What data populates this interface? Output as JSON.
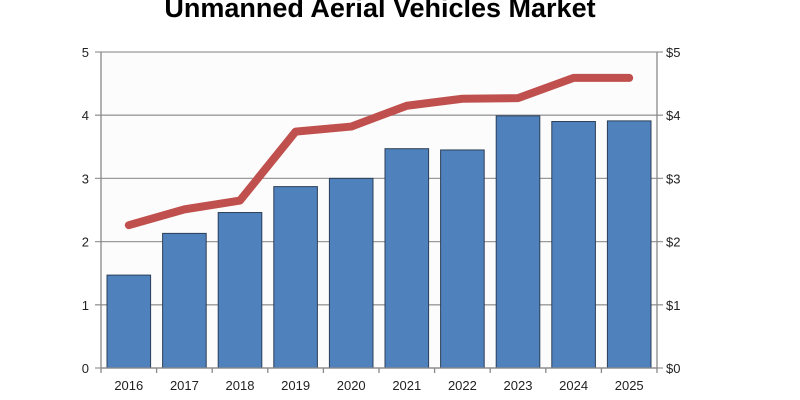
{
  "chart_data": {
    "type": "bar+line",
    "title": "Unmanned Aerial Vehicles Market",
    "categories": [
      "2016",
      "2017",
      "2018",
      "2019",
      "2020",
      "2021",
      "2022",
      "2023",
      "2024",
      "2025"
    ],
    "series": [
      {
        "type": "bar",
        "axis": "left",
        "color": "#4f81bd",
        "values": [
          1.47,
          2.13,
          2.46,
          2.87,
          3.0,
          3.47,
          3.45,
          3.99,
          3.9,
          3.91
        ]
      },
      {
        "type": "line",
        "axis": "right",
        "color": "#c0504d",
        "values": [
          2.26,
          2.51,
          2.65,
          3.74,
          3.82,
          4.15,
          4.26,
          4.27,
          4.59,
          4.59
        ]
      }
    ],
    "left_axis": {
      "ylim": [
        0,
        5
      ],
      "ticks": [
        "0",
        "1",
        "2",
        "3",
        "4",
        "5"
      ]
    },
    "right_axis": {
      "ylim": [
        0,
        5
      ],
      "ticks": [
        "$0",
        "$1",
        "$2",
        "$3",
        "$4",
        "$5"
      ]
    },
    "grid": true,
    "legend": "none"
  }
}
